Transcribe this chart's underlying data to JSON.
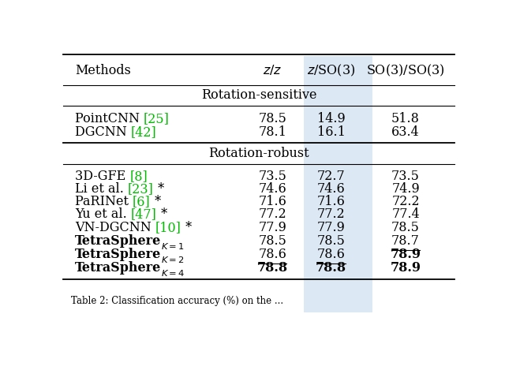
{
  "highlight_color": "#dde8f5",
  "section_sensitive": "Rotation-sensitive",
  "section_robust": "Rotation-robust",
  "rows_sensitive": [
    {
      "method_prefix": "PointCNN ",
      "ref": "25",
      "method_suffix": "",
      "star": false,
      "tetra": false,
      "k_val": "",
      "zz": "78.5",
      "zso3": "14.9",
      "so3so3": "51.8",
      "zz_bold": false,
      "zz_ul": false,
      "zso3_bold": false,
      "zso3_ul": false,
      "so3_bold": false,
      "so3_ul": false
    },
    {
      "method_prefix": "DGCNN ",
      "ref": "42",
      "method_suffix": "",
      "star": false,
      "tetra": false,
      "k_val": "",
      "zz": "78.1",
      "zso3": "16.1",
      "so3so3": "63.4",
      "zz_bold": false,
      "zz_ul": false,
      "zso3_bold": false,
      "zso3_ul": false,
      "so3_bold": false,
      "so3_ul": false
    }
  ],
  "rows_robust": [
    {
      "method_prefix": "3D-GFE ",
      "ref": "8",
      "method_suffix": "",
      "star": false,
      "tetra": false,
      "k_val": "",
      "zz": "73.5",
      "zso3": "72.7",
      "so3so3": "73.5",
      "zz_bold": false,
      "zz_ul": false,
      "zso3_bold": false,
      "zso3_ul": false,
      "so3_bold": false,
      "so3_ul": false
    },
    {
      "method_prefix": "Li et al. ",
      "ref": "23",
      "method_suffix": " *",
      "star": true,
      "tetra": false,
      "k_val": "",
      "zz": "74.6",
      "zso3": "74.6",
      "so3so3": "74.9",
      "zz_bold": false,
      "zz_ul": false,
      "zso3_bold": false,
      "zso3_ul": false,
      "so3_bold": false,
      "so3_ul": false
    },
    {
      "method_prefix": "PaRINet ",
      "ref": "6",
      "method_suffix": " *",
      "star": true,
      "tetra": false,
      "k_val": "",
      "zz": "71.6",
      "zso3": "71.6",
      "so3so3": "72.2",
      "zz_bold": false,
      "zz_ul": false,
      "zso3_bold": false,
      "zso3_ul": false,
      "so3_bold": false,
      "so3_ul": false
    },
    {
      "method_prefix": "Yu et al. ",
      "ref": "47",
      "method_suffix": " *",
      "star": true,
      "tetra": false,
      "k_val": "",
      "zz": "77.2",
      "zso3": "77.2",
      "so3so3": "77.4",
      "zz_bold": false,
      "zz_ul": false,
      "zso3_bold": false,
      "zso3_ul": false,
      "so3_bold": false,
      "so3_ul": false
    },
    {
      "method_prefix": "VN-DGCNN ",
      "ref": "10",
      "method_suffix": " *",
      "star": true,
      "tetra": false,
      "k_val": "",
      "zz": "77.9",
      "zso3": "77.9",
      "so3so3": "78.5",
      "zz_bold": false,
      "zz_ul": false,
      "zso3_bold": false,
      "zso3_ul": false,
      "so3_bold": false,
      "so3_ul": false
    },
    {
      "method_prefix": "TetraSphere",
      "ref": "",
      "method_suffix": "",
      "star": false,
      "tetra": true,
      "k_val": "1",
      "zz": "78.5",
      "zso3": "78.5",
      "so3so3": "78.7",
      "zz_bold": false,
      "zz_ul": false,
      "zso3_bold": false,
      "zso3_ul": false,
      "so3_bold": false,
      "so3_ul": true
    },
    {
      "method_prefix": "TetraSphere",
      "ref": "",
      "method_suffix": "",
      "star": false,
      "tetra": true,
      "k_val": "2",
      "zz": "78.6",
      "zso3": "78.6",
      "so3so3": "78.9",
      "zz_bold": false,
      "zz_ul": true,
      "zso3_bold": false,
      "zso3_ul": true,
      "so3_bold": true,
      "so3_ul": false
    },
    {
      "method_prefix": "TetraSphere",
      "ref": "",
      "method_suffix": "",
      "star": false,
      "tetra": true,
      "k_val": "4",
      "zz": "78.8",
      "zso3": "78.8",
      "so3so3": "78.9",
      "zz_bold": true,
      "zz_ul": false,
      "zso3_bold": true,
      "zso3_ul": false,
      "so3_bold": true,
      "so3_ul": false
    }
  ],
  "bg_color": "#ffffff",
  "ref_color": "#00bb00",
  "font_size": 11.5,
  "fig_width": 6.4,
  "fig_height": 4.69
}
